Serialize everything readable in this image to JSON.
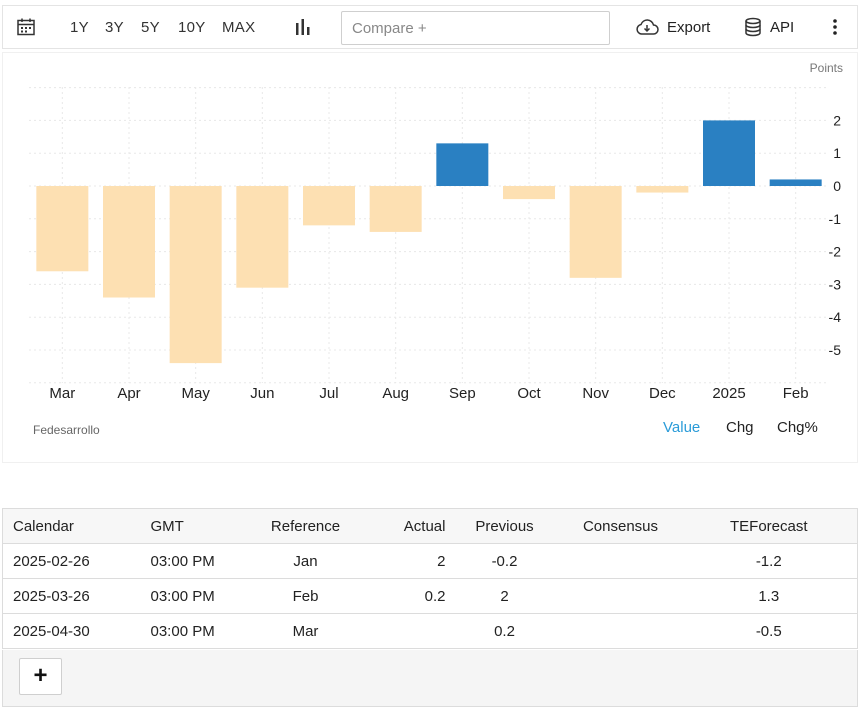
{
  "toolbar": {
    "calendar_icon": "calendar-icon",
    "ranges": [
      "1Y",
      "3Y",
      "5Y",
      "10Y",
      "MAX"
    ],
    "chart_type_icon": "bar-chart-icon",
    "compare_placeholder": "Compare +",
    "export_label": "Export",
    "export_icon": "cloud-download-icon",
    "api_label": "API",
    "api_icon": "database-icon",
    "menu_icon": "more-vertical-icon"
  },
  "chart": {
    "source": "Fedesarrollo",
    "toggles": [
      "Value",
      "Chg",
      "Chg%"
    ],
    "active_toggle": "Value"
  },
  "chart_data": {
    "type": "bar",
    "unit_label": "Points",
    "categories": [
      "Mar",
      "Apr",
      "May",
      "Jun",
      "Jul",
      "Aug",
      "Sep",
      "Oct",
      "Nov",
      "Dec",
      "2025",
      "Feb"
    ],
    "values": [
      -2.6,
      -3.4,
      -5.4,
      -3.1,
      -1.2,
      -1.4,
      1.3,
      -0.4,
      -2.8,
      -0.2,
      2.0,
      0.2
    ],
    "ylim": [
      -6,
      3
    ],
    "yticks": [
      2,
      1,
      0,
      -1,
      -2,
      -3,
      -4,
      -5
    ],
    "positive_color": "#2a80c2",
    "negative_color": "#fde0b2",
    "grid": true,
    "y_axis_position": "right"
  },
  "calendar": {
    "headers": [
      "Calendar",
      "GMT",
      "Reference",
      "Actual",
      "Previous",
      "Consensus",
      "TEForecast"
    ],
    "rows": [
      {
        "date": "2025-02-26",
        "time": "03:00 PM",
        "reference": "Jan",
        "actual": "2",
        "previous": "-0.2",
        "consensus": "",
        "teforecast": "-1.2"
      },
      {
        "date": "2025-03-26",
        "time": "03:00 PM",
        "reference": "Feb",
        "actual": "0.2",
        "previous": "2",
        "consensus": "",
        "teforecast": "1.3"
      },
      {
        "date": "2025-04-30",
        "time": "03:00 PM",
        "reference": "Mar",
        "actual": "",
        "previous": "0.2",
        "consensus": "",
        "teforecast": "-0.5"
      }
    ],
    "add_label": "+"
  }
}
